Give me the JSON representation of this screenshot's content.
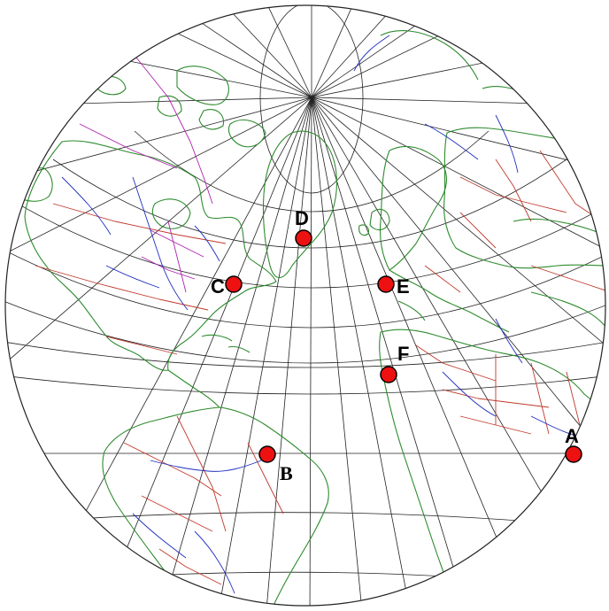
{
  "colors": {
    "coastline": "#2e8b2e",
    "borders": "#c0392b",
    "rivers": "#1f2fbf",
    "us_state_lines": "#b020b0",
    "graticule": "#222222",
    "marker_fill": "#ee1111"
  },
  "markers": [
    {
      "id": "A",
      "label": "A"
    },
    {
      "id": "B",
      "label": "B"
    },
    {
      "id": "C",
      "label": "C"
    },
    {
      "id": "D",
      "label": "D"
    },
    {
      "id": "E",
      "label": "E"
    },
    {
      "id": "F",
      "label": "F"
    }
  ]
}
